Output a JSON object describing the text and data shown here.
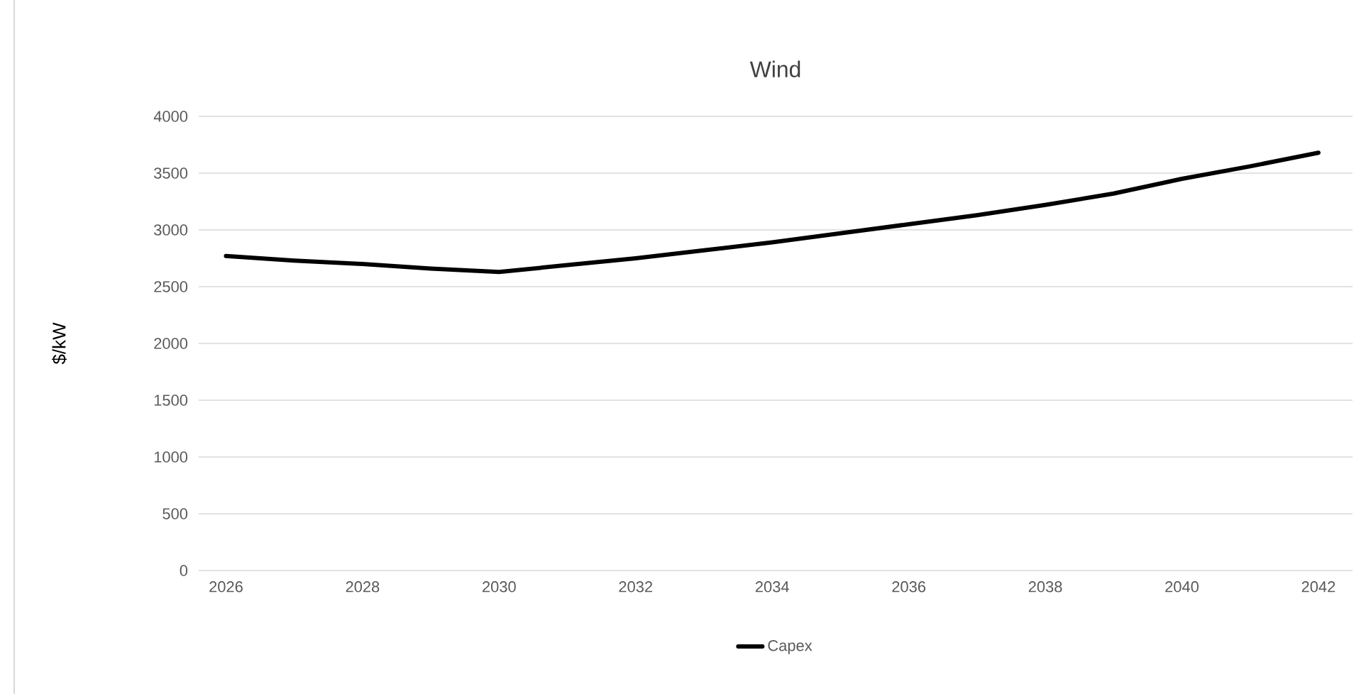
{
  "chart_data": {
    "type": "line",
    "title": "Wind",
    "ylabel": "$/kW",
    "x": [
      2026,
      2027,
      2028,
      2029,
      2030,
      2031,
      2032,
      2033,
      2034,
      2035,
      2036,
      2037,
      2038,
      2039,
      2040,
      2041,
      2042
    ],
    "series": [
      {
        "name": "Capex",
        "color": "#000000",
        "values": [
          2770,
          2730,
          2700,
          2660,
          2630,
          2690,
          2750,
          2820,
          2890,
          2970,
          3050,
          3130,
          3220,
          3320,
          3450,
          3560,
          3680
        ]
      }
    ],
    "xlim": [
      2025.6,
      2042.5
    ],
    "xticks": [
      2026,
      2028,
      2030,
      2032,
      2034,
      2036,
      2038,
      2040,
      2042
    ],
    "ylim": [
      0,
      4000
    ],
    "yticks": [
      0,
      500,
      1000,
      1500,
      2000,
      2500,
      3000,
      3500,
      4000
    ],
    "grid": "y",
    "legend": "bottom",
    "marker": "none",
    "line_style": "solid"
  }
}
